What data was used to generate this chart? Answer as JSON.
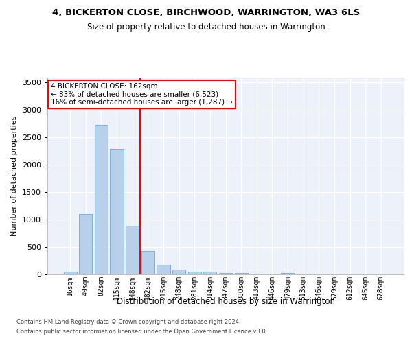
{
  "title": "4, BICKERTON CLOSE, BIRCHWOOD, WARRINGTON, WA3 6LS",
  "subtitle": "Size of property relative to detached houses in Warrington",
  "xlabel": "Distribution of detached houses by size in Warrington",
  "ylabel": "Number of detached properties",
  "bar_color": "#b8d0ea",
  "bar_edge_color": "#6aaad4",
  "background_color": "#edf2fa",
  "grid_color": "#ffffff",
  "categories": [
    "16sqm",
    "49sqm",
    "82sqm",
    "115sqm",
    "148sqm",
    "182sqm",
    "215sqm",
    "248sqm",
    "281sqm",
    "314sqm",
    "347sqm",
    "380sqm",
    "413sqm",
    "446sqm",
    "479sqm",
    "513sqm",
    "546sqm",
    "579sqm",
    "612sqm",
    "645sqm",
    "678sqm"
  ],
  "values": [
    50,
    1100,
    2730,
    2290,
    890,
    430,
    170,
    90,
    55,
    45,
    30,
    20,
    10,
    5,
    25,
    5,
    2,
    1,
    0,
    0,
    0
  ],
  "annotation_line1": "4 BICKERTON CLOSE: 162sqm",
  "annotation_line2": "← 83% of detached houses are smaller (6,523)",
  "annotation_line3": "16% of semi-detached houses are larger (1,287) →",
  "vline_x": 4.5,
  "ylim": [
    0,
    3600
  ],
  "yticks": [
    0,
    500,
    1000,
    1500,
    2000,
    2500,
    3000,
    3500
  ],
  "footer_line1": "Contains HM Land Registry data © Crown copyright and database right 2024.",
  "footer_line2": "Contains public sector information licensed under the Open Government Licence v3.0."
}
